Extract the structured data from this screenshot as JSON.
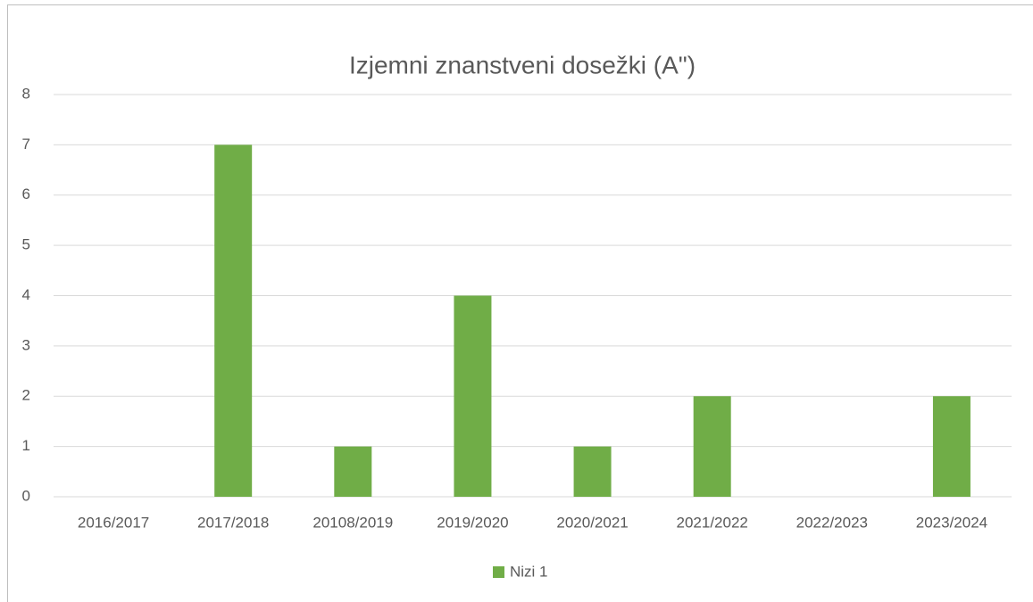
{
  "chart_data": {
    "type": "bar",
    "title": "Izjemni znanstveni dosežki (A\")",
    "categories": [
      "2016/2017",
      "2017/2018",
      "20108/2019",
      "2019/2020",
      "2020/2021",
      "2021/2022",
      "2022/2023",
      "2023/2024"
    ],
    "series": [
      {
        "name": "Nizi 1",
        "color": "#70ad47",
        "values": [
          0,
          7,
          1,
          4,
          1,
          2,
          0,
          2
        ]
      }
    ],
    "ylim": [
      0,
      8
    ],
    "yticks": [
      0,
      1,
      2,
      3,
      4,
      5,
      6,
      7,
      8
    ],
    "grid": true,
    "legend": "bottom"
  }
}
